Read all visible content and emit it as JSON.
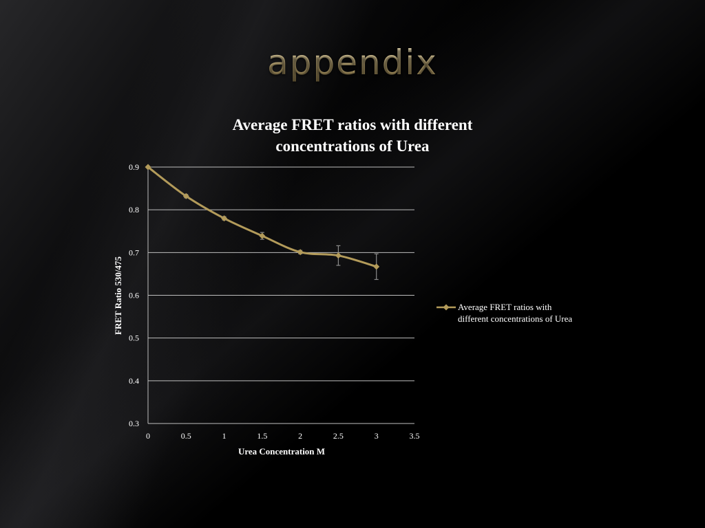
{
  "slide": {
    "title": "appendix"
  },
  "theme": {
    "series_color": "#b39b5a",
    "title_gold": "#d9c79a",
    "grid_color": "#bfbfbf",
    "error_bar_color": "#8c8c8c"
  },
  "chart_data": {
    "type": "line",
    "title_line1": "Average FRET ratios with different",
    "title_line2": "concentrations of Urea",
    "xlabel": "Urea Concentration M",
    "ylabel": "FRET Ratio 530/475",
    "xlim": [
      0,
      3.5
    ],
    "ylim": [
      0.3,
      0.9
    ],
    "x_ticks": [
      0,
      0.5,
      1,
      1.5,
      2,
      2.5,
      3,
      3.5
    ],
    "y_ticks": [
      0.3,
      0.4,
      0.5,
      0.6,
      0.7,
      0.8,
      0.9
    ],
    "x_tick_labels": [
      "0",
      "0.5",
      "1",
      "1.5",
      "2",
      "2.5",
      "3",
      "3.5"
    ],
    "y_tick_labels": [
      "0.3",
      "0.4",
      "0.5",
      "0.6",
      "0.7",
      "0.8",
      "0.9"
    ],
    "grid": true,
    "legend_position": "right",
    "series": [
      {
        "name": "Average FRET ratios with different concentrations of Urea",
        "marker": "diamond",
        "x": [
          0,
          0.5,
          1,
          1.5,
          2,
          2.5,
          3
        ],
        "y": [
          0.9,
          0.832,
          0.78,
          0.739,
          0.701,
          0.693,
          0.667
        ],
        "error": [
          0,
          0.004,
          0.004,
          0.008,
          0.004,
          0.023,
          0.03
        ]
      }
    ],
    "legend_line1": "Average FRET ratios with",
    "legend_line2": "different concentrations of Urea"
  }
}
